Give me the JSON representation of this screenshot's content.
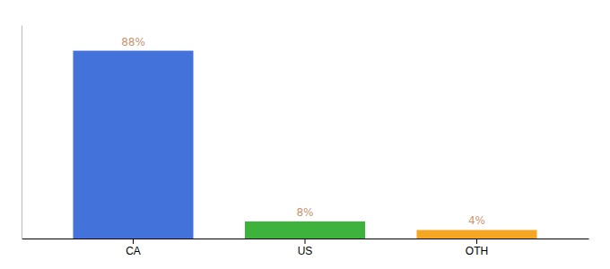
{
  "chart_data": {
    "type": "bar",
    "categories": [
      "CA",
      "US",
      "OTH"
    ],
    "values": [
      88,
      8,
      4
    ],
    "value_labels": [
      "88%",
      "8%",
      "4%"
    ],
    "colors": [
      "#4472db",
      "#3db33d",
      "#f5a623"
    ],
    "ylim": [
      0,
      100
    ],
    "data_labels": true,
    "tick_labels": "x"
  }
}
